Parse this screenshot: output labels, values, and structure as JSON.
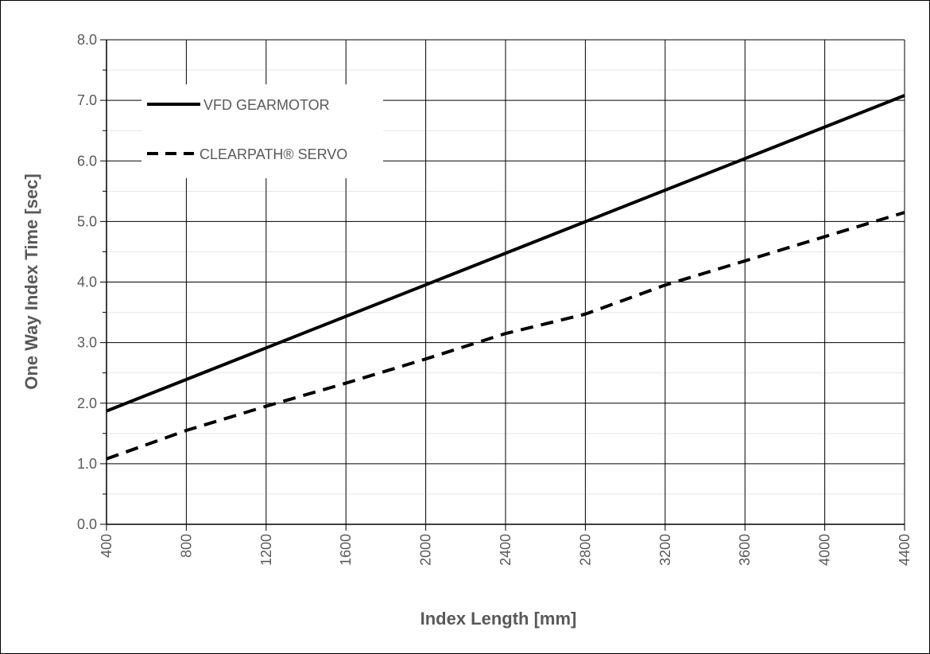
{
  "chart_data": {
    "type": "line",
    "xlabel": "Index Length [mm]",
    "ylabel": "One Way Index Time [sec]",
    "xlim": [
      400,
      4400
    ],
    "ylim": [
      0.0,
      8.0
    ],
    "xticks": [
      "400",
      "800",
      "1200",
      "1600",
      "2000",
      "2400",
      "2800",
      "3200",
      "3600",
      "4000",
      "4400"
    ],
    "yticks": [
      "0.0",
      "1.0",
      "2.0",
      "3.0",
      "4.0",
      "5.0",
      "6.0",
      "7.0",
      "8.0"
    ],
    "grid": true,
    "legend_position": "top-left",
    "series": [
      {
        "name": "VFD GEARMOTOR",
        "style": "solid",
        "color": "#000000",
        "x": [
          400,
          4400
        ],
        "y": [
          1.87,
          7.08
        ]
      },
      {
        "name": "CLEARPATH® SERVO",
        "style": "dashed",
        "color": "#000000",
        "x": [
          400,
          800,
          1200,
          1600,
          2000,
          2400,
          2800,
          3200,
          3600,
          4000,
          4400
        ],
        "y": [
          1.08,
          1.55,
          1.95,
          2.33,
          2.73,
          3.15,
          3.47,
          3.95,
          4.35,
          4.75,
          5.15
        ]
      }
    ]
  }
}
